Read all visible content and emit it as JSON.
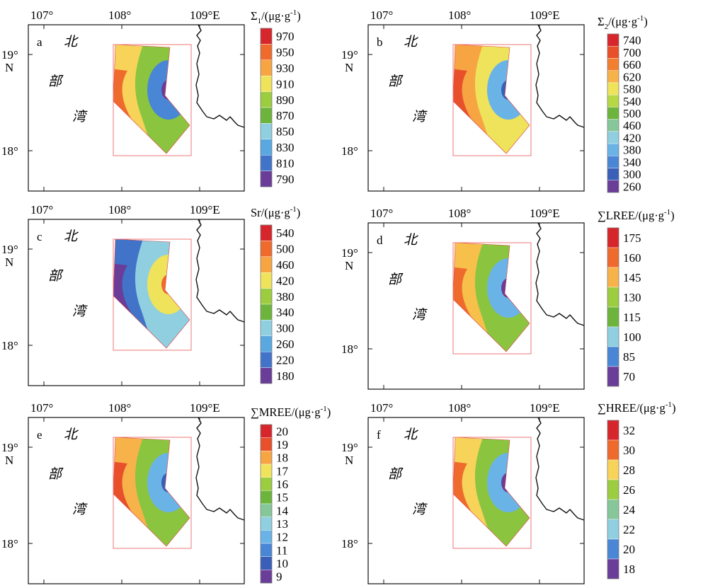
{
  "axis": {
    "lon_labels": [
      "107°",
      "108°",
      "109°E"
    ],
    "lat_labels": [
      "19°",
      "N",
      "18°"
    ]
  },
  "place_chars": [
    "北",
    "部",
    "湾"
  ],
  "panels": [
    {
      "letter": "a",
      "legend_title": "Σ1/(μg·g-1)",
      "legend_title_parts": {
        "main": "Σ",
        "sub": "1",
        "unit": "/(μg·g",
        "sup": "-1",
        "close": ")"
      },
      "legend_values": [
        "970",
        "950",
        "930",
        "910",
        "890",
        "870",
        "850",
        "830",
        "810",
        "790"
      ],
      "legend_colors": [
        "#d7262b",
        "#ef6a2d",
        "#f7a443",
        "#eee35a",
        "#9ccc3f",
        "#6db43d",
        "#8fcfe0",
        "#5aa8e0",
        "#4174c8",
        "#6a3d98"
      ],
      "surface": {
        "west": "#ef6a2d",
        "mid": "#f7d35a",
        "main": "#8bc53f",
        "low": "#4a86d6",
        "core": "#6a3d98"
      }
    },
    {
      "letter": "b",
      "legend_title": "Σ2/(μg·g-1)",
      "legend_title_parts": {
        "main": "Σ",
        "sub": "2",
        "unit": "/(μg·g",
        "sup": "-1",
        "close": ")"
      },
      "legend_values": [
        "740",
        "700",
        "660",
        "620",
        "580",
        "540",
        "500",
        "460",
        "420",
        "380",
        "340",
        "300",
        "260"
      ],
      "legend_colors": [
        "#d7262b",
        "#e8502b",
        "#f27f30",
        "#f7b34a",
        "#eee35a",
        "#b7d845",
        "#6db43d",
        "#86c79a",
        "#8fcfe0",
        "#6ab3e6",
        "#4a86d6",
        "#3a5fb8",
        "#6a3d98"
      ],
      "surface": {
        "west": "#e8502b",
        "mid": "#f7a443",
        "main": "#eee35a",
        "low": "#6ab3e6",
        "core": "#3a5fb8"
      }
    },
    {
      "letter": "c",
      "legend_title": "Sr/(μg·g-1)",
      "legend_title_parts": {
        "main": "Sr",
        "sub": "",
        "unit": "/(μg·g",
        "sup": "-1",
        "close": ")"
      },
      "legend_values": [
        "540",
        "500",
        "460",
        "420",
        "380",
        "340",
        "300",
        "260",
        "220",
        "180"
      ],
      "legend_colors": [
        "#d7262b",
        "#ef6a2d",
        "#f7a443",
        "#eee35a",
        "#9ccc3f",
        "#6db43d",
        "#8fcfe0",
        "#5aa8e0",
        "#4174c8",
        "#6a3d98"
      ],
      "surface": {
        "west": "#6a3d98",
        "mid": "#4174c8",
        "main": "#8fcfe0",
        "low": "#eee35a",
        "core": "#ef6a2d"
      }
    },
    {
      "letter": "d",
      "legend_title": "∑LREE/(μg·g-1)",
      "legend_title_parts": {
        "main": "∑LREE",
        "sub": "",
        "unit": "/(μg·g",
        "sup": "-1",
        "close": ")"
      },
      "legend_values": [
        "175",
        "160",
        "145",
        "130",
        "115",
        "100",
        "85",
        "70"
      ],
      "legend_colors": [
        "#d7262b",
        "#ef6a2d",
        "#f7b34a",
        "#9ccc3f",
        "#6db43d",
        "#8fcfe0",
        "#4a86d6",
        "#6a3d98"
      ],
      "surface": {
        "west": "#ef6a2d",
        "mid": "#f7c04a",
        "main": "#8bc53f",
        "low": "#6ab3e6",
        "core": "#6a3d98"
      }
    },
    {
      "letter": "e",
      "legend_title": "∑MREE/(μg·g-1)",
      "legend_title_parts": {
        "main": "∑MREE",
        "sub": "",
        "unit": "/(μg·g",
        "sup": "-1",
        "close": ")"
      },
      "legend_values": [
        "20",
        "19",
        "18",
        "17",
        "16",
        "15",
        "14",
        "13",
        "12",
        "11",
        "10",
        "9"
      ],
      "legend_colors": [
        "#d7262b",
        "#e8502b",
        "#f7a443",
        "#eee35a",
        "#9ccc3f",
        "#6db43d",
        "#86c79a",
        "#8fcfe0",
        "#6ab3e6",
        "#4a86d6",
        "#3a5fb8",
        "#6a3d98"
      ],
      "surface": {
        "west": "#e8502b",
        "mid": "#f7b34a",
        "main": "#8bc53f",
        "low": "#6ab3e6",
        "core": "#3a5fb8"
      }
    },
    {
      "letter": "f",
      "legend_title": "∑HREE/(μg·g-1)",
      "legend_title_parts": {
        "main": "∑HREE",
        "sub": "",
        "unit": "/(μg·g",
        "sup": "-1",
        "close": ")"
      },
      "legend_values": [
        "32",
        "30",
        "28",
        "26",
        "24",
        "22",
        "20",
        "18"
      ],
      "legend_colors": [
        "#d7262b",
        "#ef6a2d",
        "#f7d35a",
        "#9ccc3f",
        "#86c79a",
        "#8fcfe0",
        "#4a86d6",
        "#6a3d98"
      ],
      "surface": {
        "west": "#ef6a2d",
        "mid": "#f7d35a",
        "main": "#8bc53f",
        "low": "#6ab3e6",
        "core": "#6a3d98"
      }
    }
  ]
}
